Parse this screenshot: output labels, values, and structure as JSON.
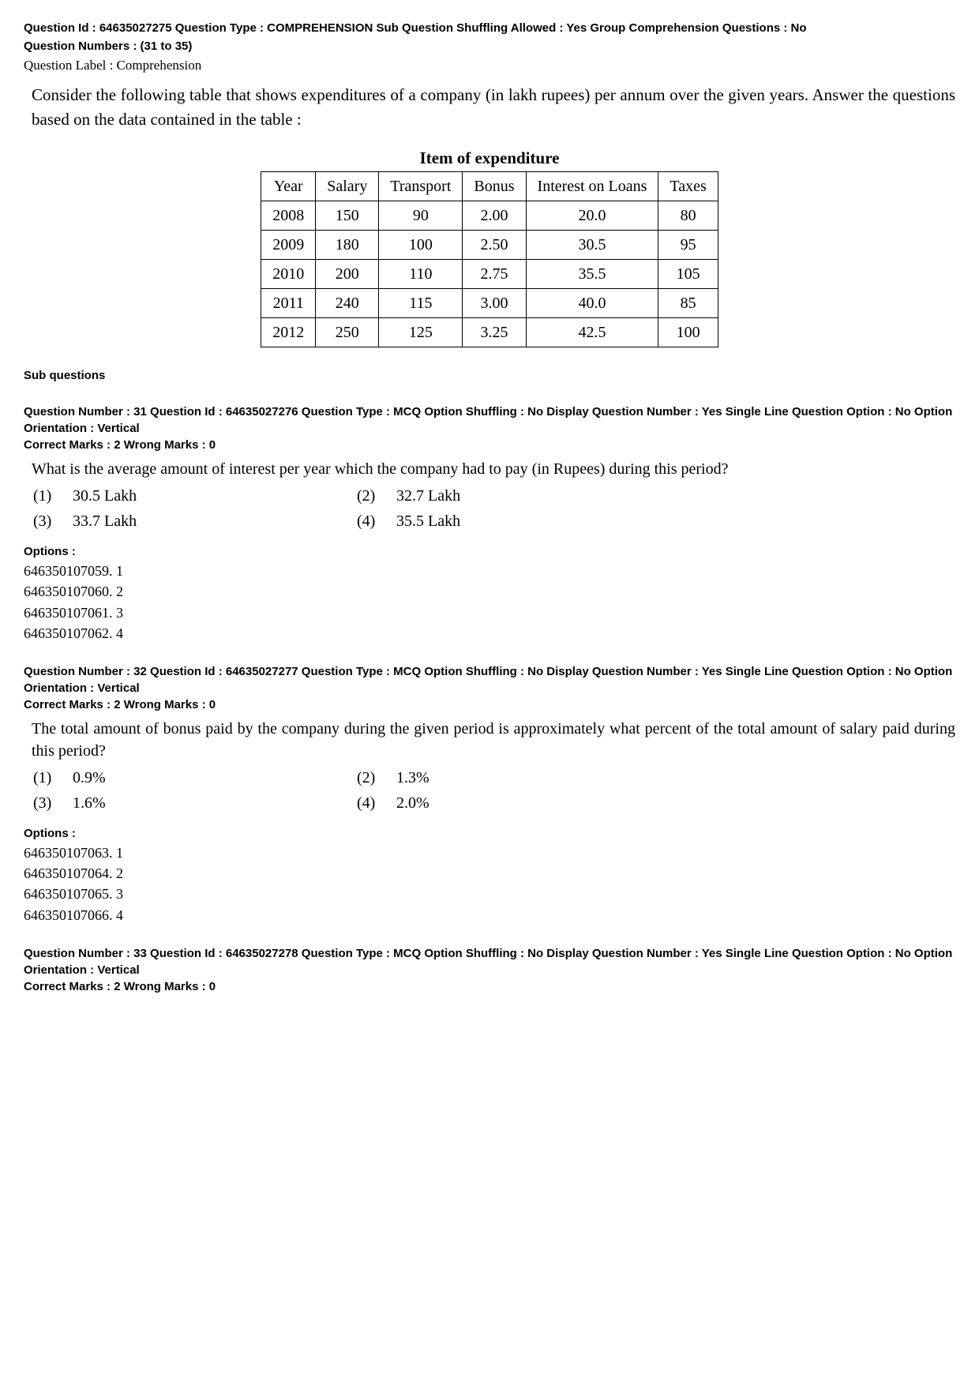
{
  "header": {
    "line1": "Question Id : 64635027275  Question Type : COMPREHENSION  Sub Question Shuffling Allowed : Yes  Group Comprehension Questions : No",
    "line2": "Question Numbers : (31 to 35)",
    "label": "Question Label : Comprehension"
  },
  "passage": "Consider the following table that shows expenditures of a company (in lakh rupees) per annum over the given years. Answer the questions  based on the data contained in    the table :",
  "table": {
    "title": "Item of expenditure",
    "columns": [
      "Year",
      "Salary",
      "Transport",
      "Bonus",
      "Interest on Loans",
      "Taxes"
    ],
    "rows": [
      [
        "2008",
        "150",
        "90",
        "2.00",
        "20.0",
        "80"
      ],
      [
        "2009",
        "180",
        "100",
        "2.50",
        "30.5",
        "95"
      ],
      [
        "2010",
        "200",
        "110",
        "2.75",
        "35.5",
        "105"
      ],
      [
        "2011",
        "240",
        "115",
        "3.00",
        "40.0",
        "85"
      ],
      [
        "2012",
        "250",
        "125",
        "3.25",
        "42.5",
        "100"
      ]
    ]
  },
  "sub_questions_label": "Sub questions",
  "questions": [
    {
      "meta": "Question Number : 31  Question Id : 64635027276  Question Type : MCQ  Option Shuffling : No  Display Question Number : Yes Single Line Question Option : No  Option Orientation : Vertical",
      "marks": "Correct Marks : 2  Wrong Marks : 0",
      "text": "What is the average amount of interest per year which the company had to pay (in Rupees) during this period?",
      "opts": [
        {
          "n": "(1)",
          "v": "30.5 Lakh"
        },
        {
          "n": "(2)",
          "v": "32.7 Lakh"
        },
        {
          "n": "(3)",
          "v": "33.7 Lakh"
        },
        {
          "n": "(4)",
          "v": "35.5 Lakh"
        }
      ],
      "options_label": "Options :",
      "option_ids": [
        "646350107059. 1",
        "646350107060. 2",
        "646350107061. 3",
        "646350107062. 4"
      ]
    },
    {
      "meta": "Question Number : 32  Question Id : 64635027277  Question Type : MCQ  Option Shuffling : No  Display Question Number : Yes Single Line Question Option : No  Option Orientation : Vertical",
      "marks": "Correct Marks : 2  Wrong Marks : 0",
      "text": "The total amount of bonus paid by the company during the given period is approximately what percent of the total amount of salary paid during this period?",
      "opts": [
        {
          "n": "(1)",
          "v": "0.9%"
        },
        {
          "n": "(2)",
          "v": "1.3%"
        },
        {
          "n": "(3)",
          "v": "1.6%"
        },
        {
          "n": "(4)",
          "v": "2.0%"
        }
      ],
      "options_label": "Options :",
      "option_ids": [
        "646350107063. 1",
        "646350107064. 2",
        "646350107065. 3",
        "646350107066. 4"
      ]
    },
    {
      "meta": "Question Number : 33  Question Id : 64635027278  Question Type : MCQ  Option Shuffling : No  Display Question Number : Yes Single Line Question Option : No  Option Orientation : Vertical",
      "marks": "Correct Marks : 2  Wrong Marks : 0",
      "text": "",
      "opts": [],
      "options_label": "",
      "option_ids": []
    }
  ]
}
